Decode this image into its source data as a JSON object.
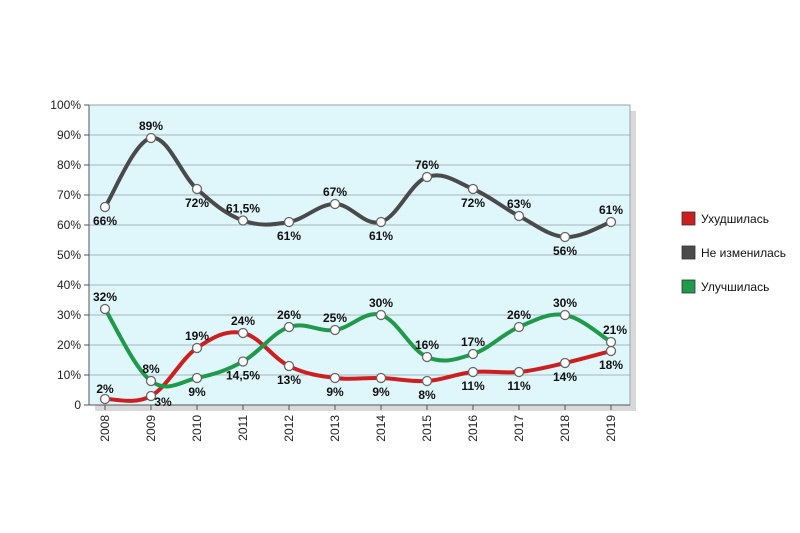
{
  "chart_data": {
    "type": "line",
    "x": [
      "2008",
      "2009",
      "2010",
      "2011",
      "2012",
      "2013",
      "2014",
      "2015",
      "2016",
      "2017",
      "2018",
      "2019"
    ],
    "ylim": [
      0,
      100
    ],
    "y_ticks": [
      "0",
      "10%",
      "20%",
      "30%",
      "40%",
      "50%",
      "60%",
      "70%",
      "80%",
      "90%",
      "100%"
    ],
    "grid": true,
    "legend_position": "right",
    "series": [
      {
        "name": "Ухудшилась",
        "color": "#cc1f1f",
        "values": [
          2,
          3,
          19,
          24,
          13,
          9,
          9,
          8,
          11,
          11,
          14,
          18
        ],
        "labels": [
          "2%",
          "3%",
          "19%",
          "24%",
          "13%",
          "9%",
          "9%",
          "8%",
          "11%",
          "11%",
          "14%",
          "18%"
        ]
      },
      {
        "name": "Не изменилась",
        "color": "#4a4a4a",
        "values": [
          66,
          89,
          72,
          61.5,
          61,
          67,
          61,
          76,
          72,
          63,
          56,
          61
        ],
        "labels": [
          "66%",
          "89%",
          "72%",
          "61,5%",
          "61%",
          "67%",
          "61%",
          "76%",
          "72%",
          "63%",
          "56%",
          "61%"
        ]
      },
      {
        "name": "Улучшилась",
        "color": "#1f9a4a",
        "values": [
          32,
          8,
          9,
          14.5,
          26,
          25,
          30,
          16,
          17,
          26,
          30,
          21
        ],
        "labels": [
          "32%",
          "8%",
          "9%",
          "14,5%",
          "26%",
          "25%",
          "30%",
          "16%",
          "17%",
          "26%",
          "30%",
          "21%"
        ]
      }
    ]
  }
}
